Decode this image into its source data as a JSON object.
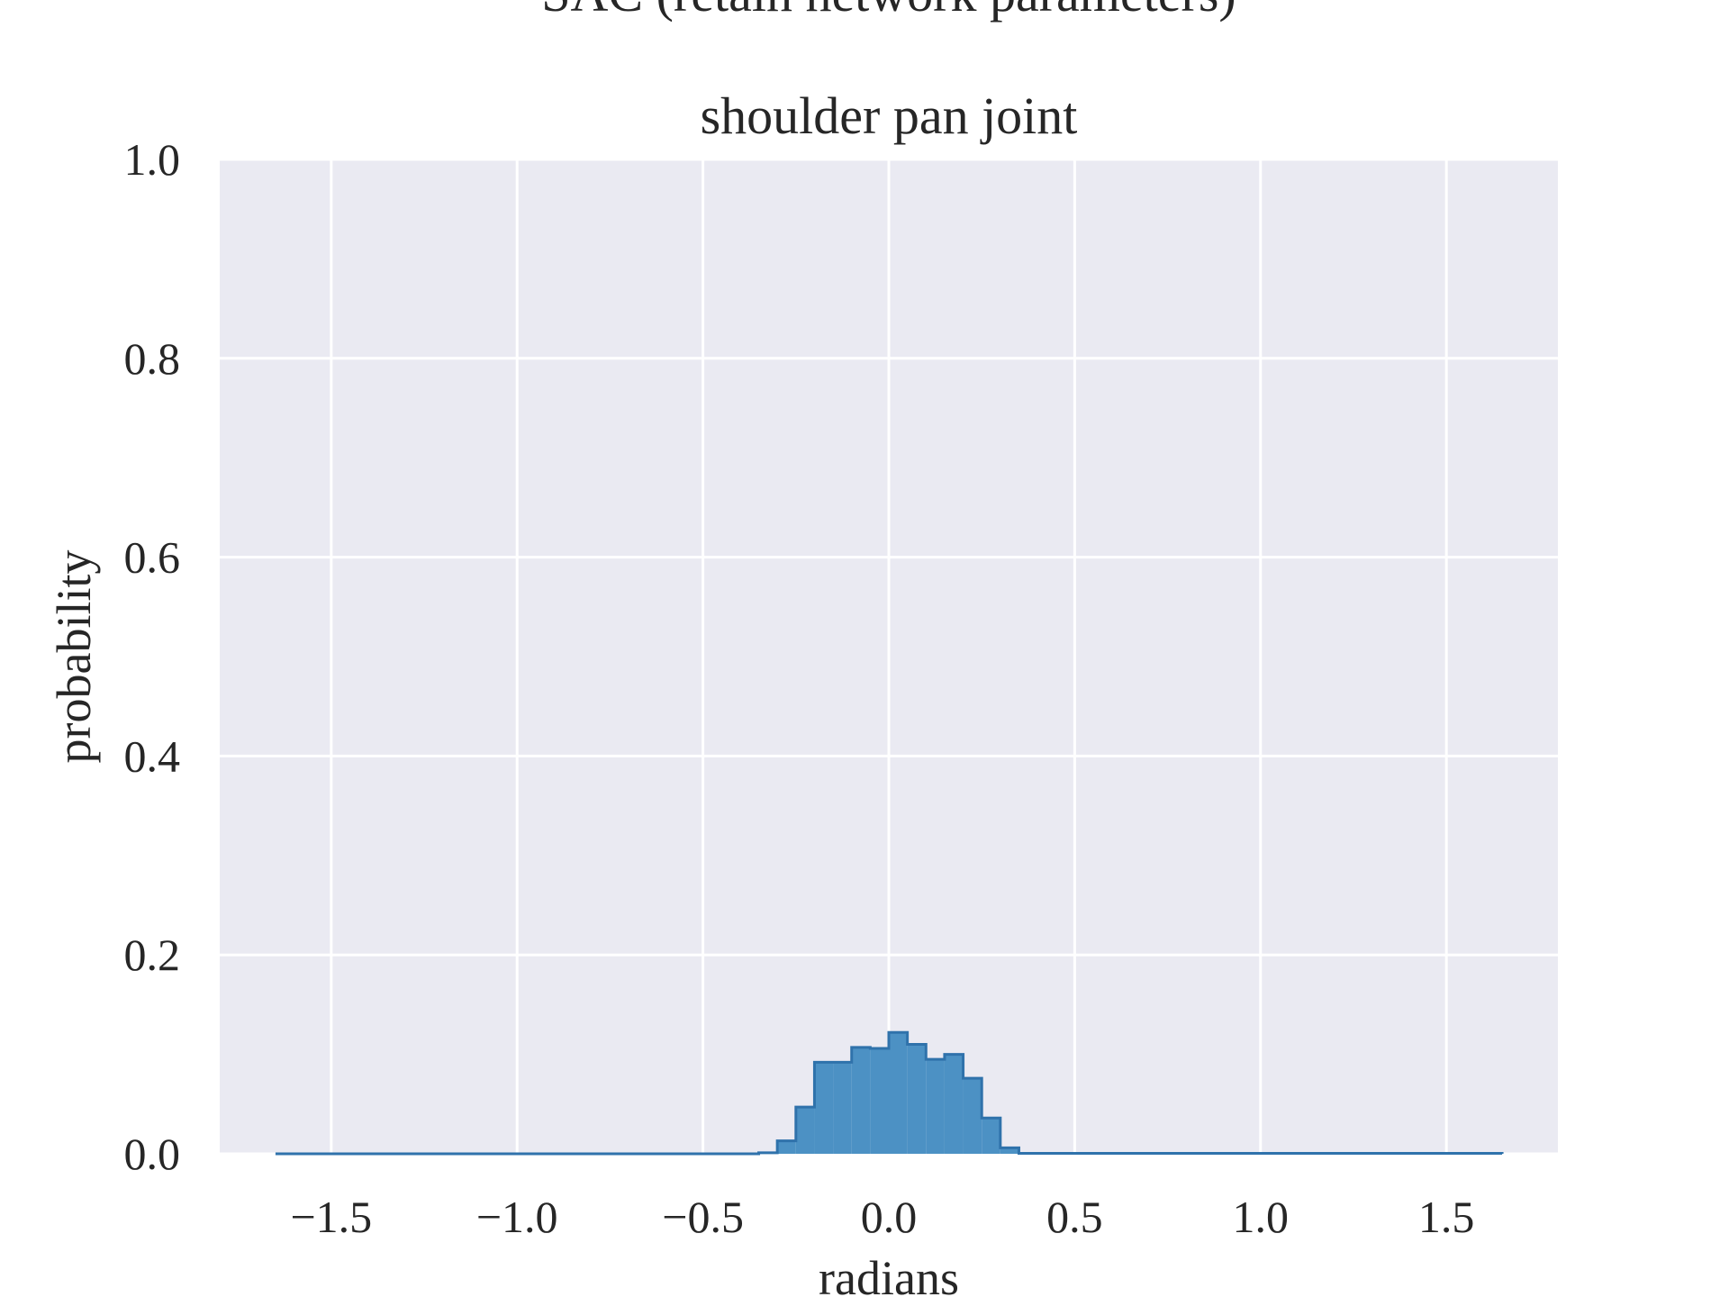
{
  "chart_data": {
    "type": "histogram",
    "title": "SAC (retain network parameters)",
    "subtitle": "shoulder pan joint",
    "xlabel": "radians",
    "ylabel": "probability",
    "xlim": [
      -1.8,
      1.8
    ],
    "ylim": [
      0.0,
      1.0
    ],
    "xticks": [
      -1.5,
      -1.0,
      -0.5,
      0.0,
      0.5,
      1.0,
      1.5
    ],
    "xtick_labels": [
      "−1.5",
      "−1.0",
      "−0.5",
      "0.0",
      "0.5",
      "1.0",
      "1.5"
    ],
    "yticks": [
      0.0,
      0.2,
      0.4,
      0.6,
      0.8,
      1.0
    ],
    "ytick_labels": [
      "0.0",
      "0.2",
      "0.4",
      "0.6",
      "0.8",
      "1.0"
    ],
    "grid": true,
    "background": "#eaeaf2",
    "grid_color": "#ffffff",
    "fill_color": "#4c91c4",
    "edge_color": "#2f72ab",
    "bin_edges": [
      -1.65,
      -0.35,
      -0.3,
      -0.25,
      -0.2,
      -0.15,
      -0.1,
      -0.05,
      0.0,
      0.05,
      0.1,
      0.15,
      0.2,
      0.25,
      0.3,
      0.35,
      1.65
    ],
    "values": [
      0.0,
      0.001,
      0.013,
      0.047,
      0.092,
      0.092,
      0.107,
      0.106,
      0.122,
      0.11,
      0.095,
      0.1,
      0.076,
      0.036,
      0.006,
      0.0005
    ]
  }
}
